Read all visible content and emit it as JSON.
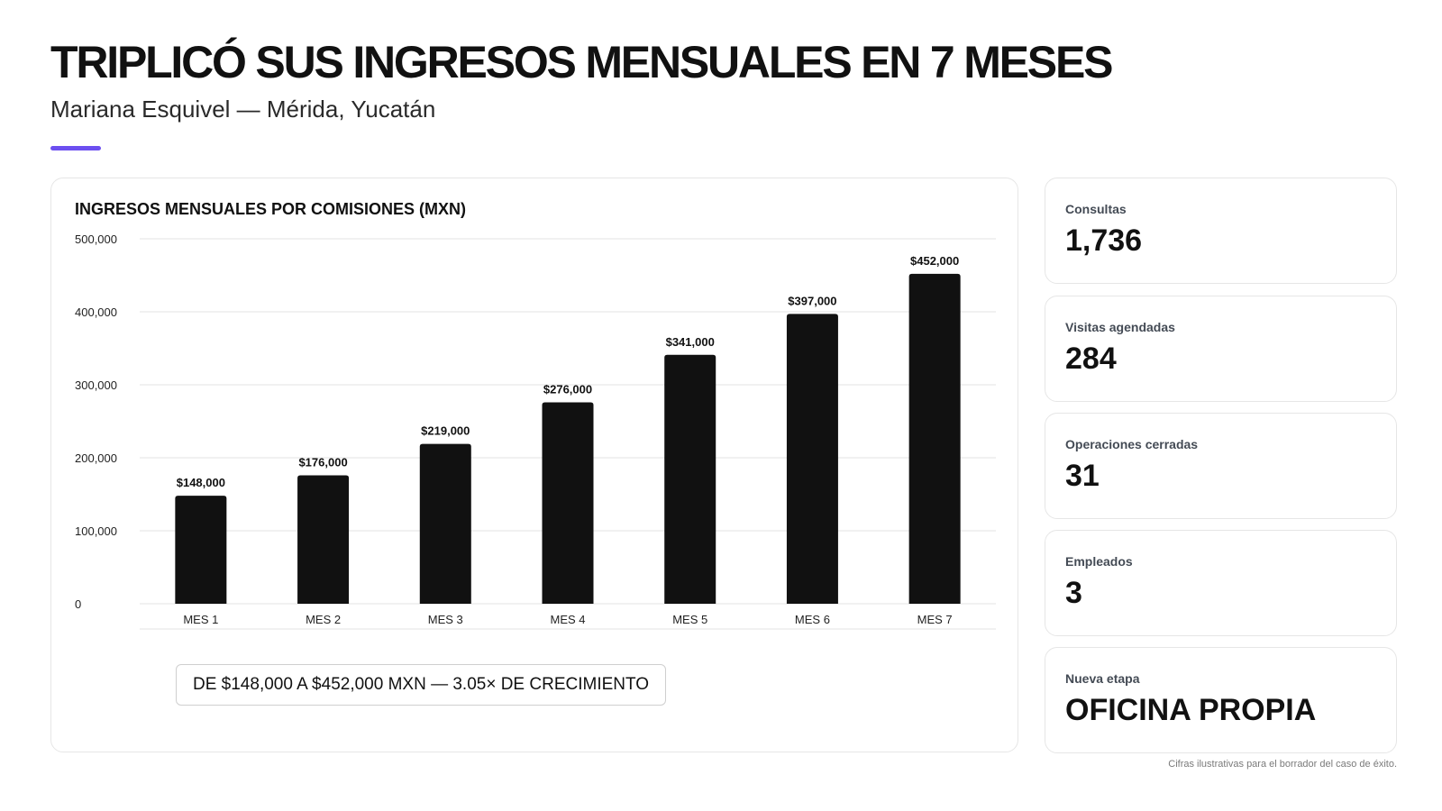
{
  "header": {
    "title": "TRIPLICÓ SUS INGRESOS MENSUALES EN 7 MESES",
    "subtitle": "Mariana Esquivel — Mérida, Yucatán"
  },
  "colors": {
    "accent": "#6c4ff0",
    "bar": "#111111",
    "grid": "#e3e3e3"
  },
  "chart_data": {
    "type": "bar",
    "title": "INGRESOS MENSUALES POR COMISIONES (MXN)",
    "categories": [
      "MES 1",
      "MES 2",
      "MES 3",
      "MES 4",
      "MES 5",
      "MES 6",
      "MES 7"
    ],
    "values": [
      148000,
      176000,
      219000,
      276000,
      341000,
      397000,
      452000
    ],
    "data_labels": [
      "$148,000",
      "$176,000",
      "$219,000",
      "$276,000",
      "$341,000",
      "$397,000",
      "$452,000"
    ],
    "y_ticks": [
      "0",
      "100,000",
      "200,000",
      "300,000",
      "400,000",
      "500,000"
    ],
    "ylim": [
      0,
      500000
    ],
    "grid": true,
    "xlabel": "",
    "ylabel": ""
  },
  "callout": "DE $148,000 A $452,000 MXN — 3.05× DE CRECIMIENTO",
  "stats": [
    {
      "label": "Consultas",
      "value": "1,736"
    },
    {
      "label": "Visitas agendadas",
      "value": "284"
    },
    {
      "label": "Operaciones cerradas",
      "value": "31"
    },
    {
      "label": "Empleados",
      "value": "3"
    },
    {
      "label": "Nueva etapa",
      "value": "OFICINA PROPIA"
    }
  ],
  "footnote": "Cifras ilustrativas para el borrador del caso de éxito."
}
